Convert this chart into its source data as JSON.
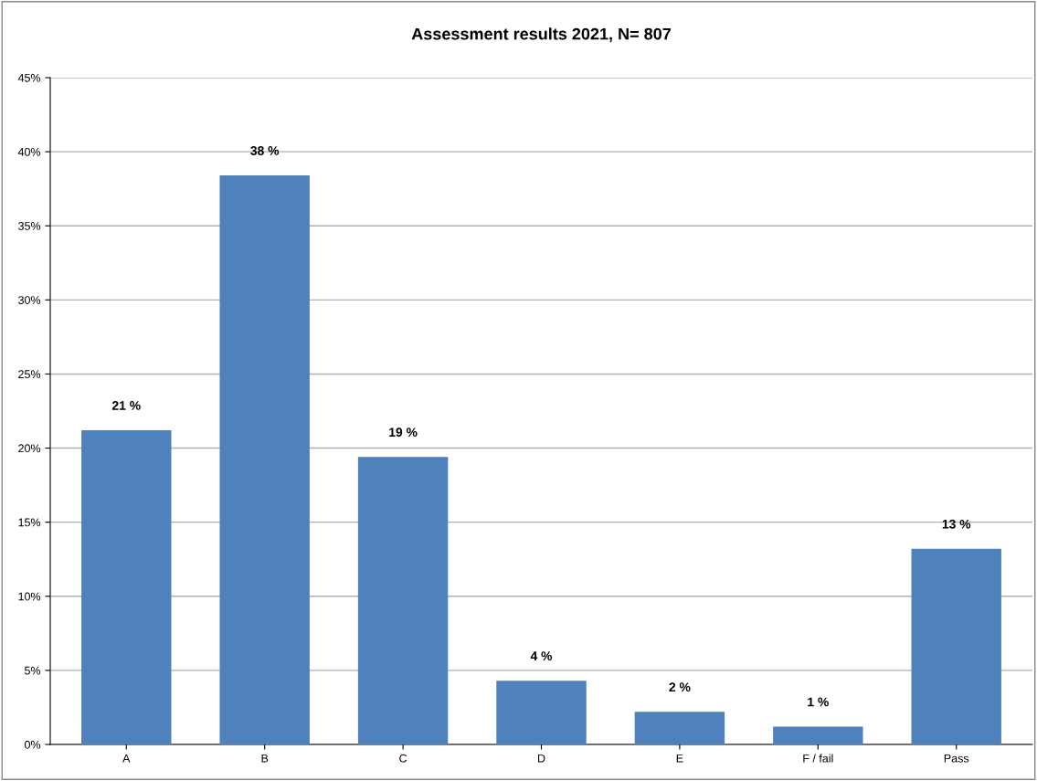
{
  "chart_data": {
    "type": "bar",
    "title": "Assessment results 2021, N= 807",
    "categories": [
      "A",
      "B",
      "C",
      "D",
      "E",
      "F / fail",
      "Pass"
    ],
    "values": [
      21.2,
      38.4,
      19.4,
      4.3,
      2.2,
      1.2,
      13.2
    ],
    "value_labels": [
      "21 %",
      "38 %",
      "19 %",
      "4 %",
      "2 %",
      "1 %",
      "13 %"
    ],
    "color": "#4f81bd",
    "ylim": [
      0,
      45
    ],
    "yticks": [
      {
        "value": 0,
        "label": "0%"
      },
      {
        "value": 5,
        "label": "5%"
      },
      {
        "value": 10,
        "label": "10%"
      },
      {
        "value": 15,
        "label": "15%"
      },
      {
        "value": 20,
        "label": "20%"
      },
      {
        "value": 25,
        "label": "25%"
      },
      {
        "value": 30,
        "label": "30%"
      },
      {
        "value": 35,
        "label": "35%"
      },
      {
        "value": 40,
        "label": "40%"
      },
      {
        "value": 45,
        "label": "45%"
      }
    ],
    "grid": "y",
    "legend": false
  }
}
